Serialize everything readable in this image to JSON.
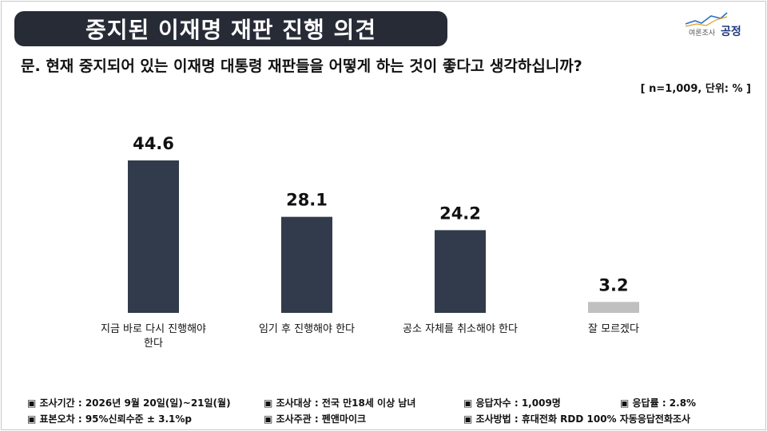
{
  "header": {
    "title": "중지된 이재명 재판 진행 의견",
    "logo_text": "공정",
    "logo_subtext": "여론조사",
    "logo_icon": "chart-line-logo-icon"
  },
  "question": "문. 현재 중지되어 있는 이재명 대통령 재판들을 어떻게 하는 것이 좋다고 생각하십니까?",
  "meta_n": "[ n=1,009, 단위: % ]",
  "chart_data": {
    "type": "bar",
    "categories": [
      "지금 바로 다시 진행해야 한다",
      "임기 후 진행해야 한다",
      "공소 자체를 취소해야 한다",
      "잘 모르겠다"
    ],
    "category_lines": [
      [
        "지금 바로 다시 진행해야",
        "한다"
      ],
      [
        "임기 후 진행해야 한다"
      ],
      [
        "공소 자체를 취소해야 한다"
      ],
      [
        "잘 모르겠다"
      ]
    ],
    "values": [
      44.6,
      28.1,
      24.2,
      3.2
    ],
    "value_labels": [
      "44.6",
      "28.1",
      "24.2",
      "3.2"
    ],
    "ylim": [
      0,
      50
    ],
    "bar_colors": [
      "#323b4b",
      "#323b4b",
      "#323b4b",
      "#c0c0c0"
    ],
    "grid": false,
    "legend": "none"
  },
  "footer": {
    "period": "▣ 조사기간 : 2026년 9월 20일(일)~21일(월)",
    "target": "▣ 조사대상 : 전국 만18세 이상 남녀",
    "respondents": "▣ 응답자수 : 1,009명",
    "response_rate": "▣ 응답률 : 2.8%",
    "error": "▣ 표본오차 : 95%신뢰수준 ± 3.1%p",
    "sponsor": "▣ 조사주관 : 펜앤마이크",
    "method": "▣ 조사방법 : 휴대전화 RDD 100% 자동응답전화조사"
  }
}
